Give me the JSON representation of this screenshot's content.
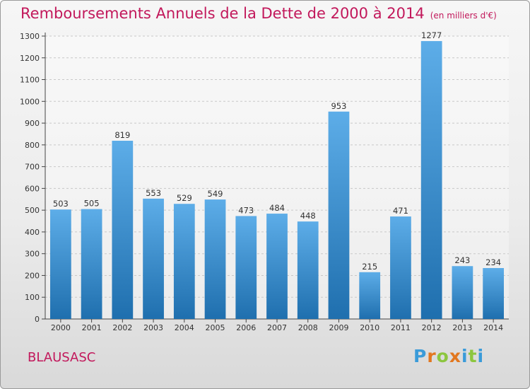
{
  "title": "Remboursements Annuels de la Dette de 2000 à 2014",
  "unit_note": "(en milliers d'€)",
  "commune": "BLAUSASC",
  "logo_letters": [
    "P",
    "r",
    "o",
    "x",
    "i",
    "t",
    "i"
  ],
  "colors": {
    "title": "#c2185b",
    "bar_top": "#5dade8",
    "bar_bottom": "#1f6fae",
    "logo": [
      "#3a9bd9",
      "#e2771f",
      "#8cc63f",
      "#e2771f",
      "#3a9bd9",
      "#8cc63f",
      "#3a9bd9"
    ]
  },
  "chart_data": {
    "type": "bar",
    "title": "Remboursements Annuels de la Dette de 2000 à 2014",
    "categories": [
      "2000",
      "2001",
      "2002",
      "2003",
      "2004",
      "2005",
      "2006",
      "2007",
      "2008",
      "2009",
      "2010",
      "2011",
      "2012",
      "2013",
      "2014"
    ],
    "values": [
      503,
      505,
      819,
      553,
      529,
      549,
      473,
      484,
      448,
      953,
      215,
      471,
      1277,
      243,
      234
    ],
    "ylim": [
      0,
      1300
    ],
    "yticks": [
      0,
      100,
      200,
      300,
      400,
      500,
      600,
      700,
      800,
      900,
      1000,
      1100,
      1200,
      1300
    ],
    "grid": true,
    "xlabel": "",
    "ylabel": ""
  }
}
